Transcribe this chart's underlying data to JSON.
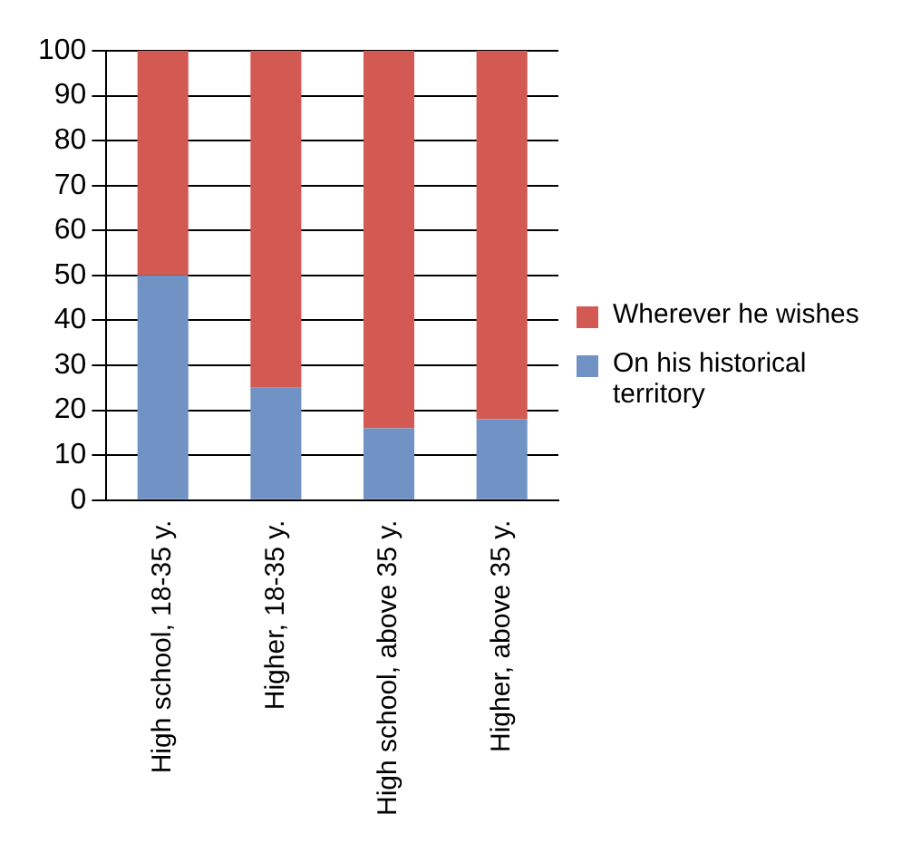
{
  "chart_data": {
    "type": "bar",
    "stacked": true,
    "categories": [
      "High school, 18-35 y.",
      "Higher, 18-35 y.",
      "High school, above 35 y.",
      "Higher, above 35 y."
    ],
    "series": [
      {
        "name": "On his historical territory",
        "color": "#7092c4",
        "values": [
          50,
          25,
          16,
          18
        ]
      },
      {
        "name": "Wherever he wishes",
        "color": "#d35a52",
        "values": [
          50,
          75,
          84,
          82
        ]
      }
    ],
    "ylim": [
      0,
      100
    ],
    "yticks": [
      0,
      10,
      20,
      30,
      40,
      50,
      60,
      70,
      80,
      90,
      100
    ],
    "grid": "y",
    "legend": "right"
  }
}
